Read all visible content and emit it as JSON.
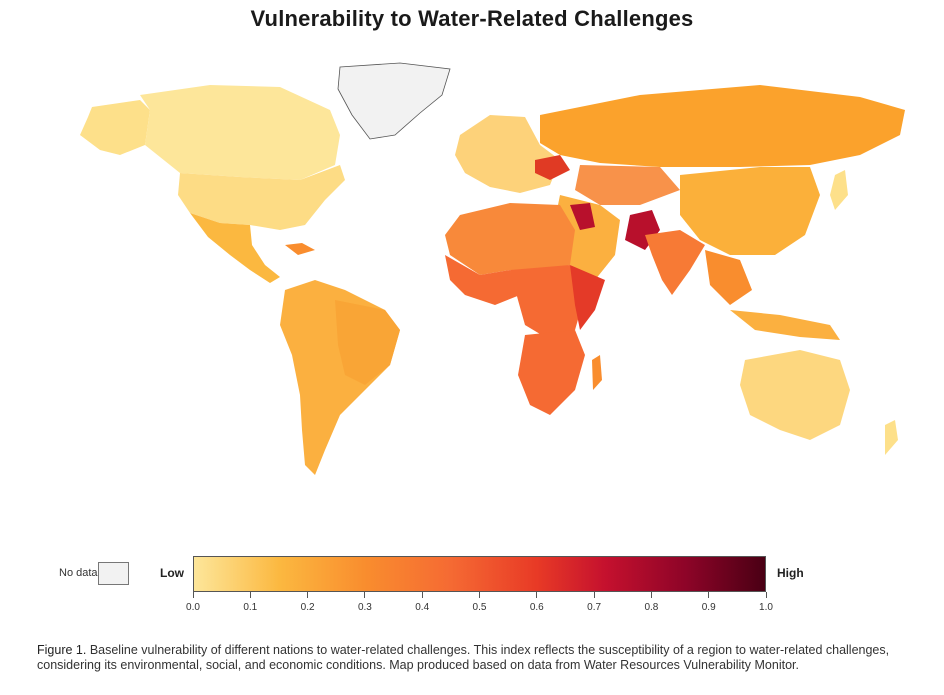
{
  "title": "Vulnerability to Water-Related Challenges",
  "legend": {
    "no_data_label": "No data",
    "low_label": "Low",
    "high_label": "High",
    "ticks": [
      "0.0",
      "0.1",
      "0.2",
      "0.3",
      "0.4",
      "0.5",
      "0.6",
      "0.7",
      "0.8",
      "0.9",
      "1.0"
    ],
    "colors": {
      "low": "#fde69a",
      "mid": "#f98d2e",
      "high": "#4a0014",
      "no_data": "#f2f2f2"
    }
  },
  "caption": {
    "lead": "Figure 1.",
    "text": " Baseline vulnerability of different nations to water-related challenges. This index reflects the susceptibility of a region to water-related challenges, considering its environmental, social, and economic conditions. Map produced based on data from Water Resources Vulnerability Monitor."
  }
}
